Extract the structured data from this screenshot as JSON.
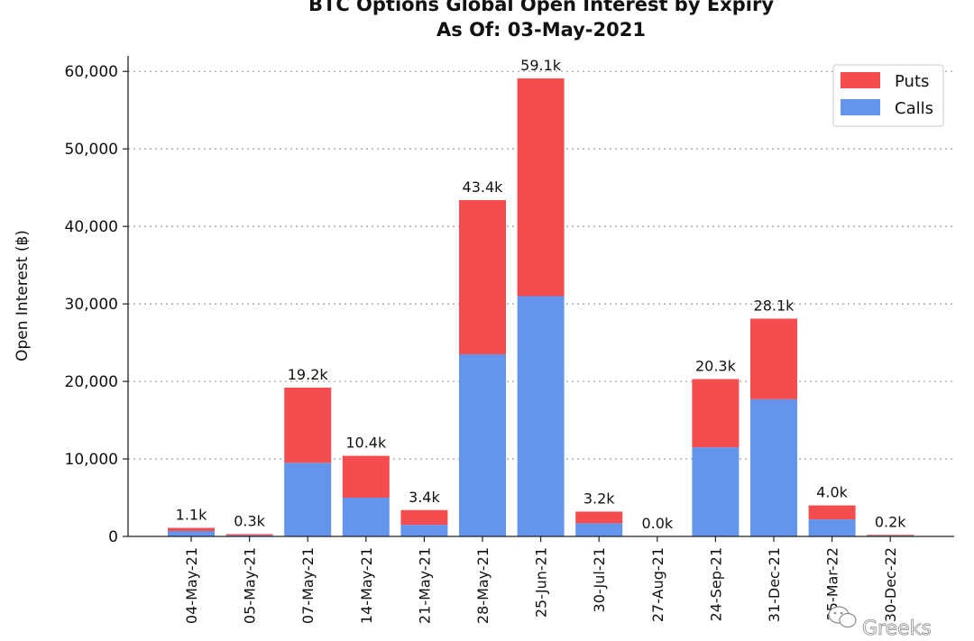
{
  "chart_data": {
    "type": "bar",
    "stacked": true,
    "title": "BTC Options Global Open Interest by Expiry",
    "subtitle": "As Of: 03-May-2021",
    "xlabel": "",
    "ylabel": "Open Interest (฿)",
    "ylim": [
      0,
      62000
    ],
    "yticks": [
      0,
      10000,
      20000,
      30000,
      40000,
      50000,
      60000
    ],
    "ytick_labels": [
      "0",
      "10,000",
      "20,000",
      "30,000",
      "40,000",
      "50,000",
      "60,000"
    ],
    "grid": "horizontal-dotted",
    "legend_position": "top-right",
    "categories": [
      "04-May-21",
      "05-May-21",
      "07-May-21",
      "14-May-21",
      "21-May-21",
      "28-May-21",
      "25-Jun-21",
      "30-Jul-21",
      "27-Aug-21",
      "24-Sep-21",
      "31-Dec-21",
      "25-Mar-22",
      "30-Dec-22"
    ],
    "series": [
      {
        "name": "Calls",
        "color": "#6495ed",
        "values": [
          700,
          150,
          9500,
          5000,
          1500,
          23500,
          31000,
          1700,
          10,
          11500,
          17700,
          2200,
          100
        ]
      },
      {
        "name": "Puts",
        "color": "#f54c4f",
        "values": [
          400,
          150,
          9700,
          5400,
          1900,
          19900,
          28100,
          1500,
          10,
          8800,
          10400,
          1800,
          100
        ]
      }
    ],
    "totals_labels": [
      "1.1k",
      "0.3k",
      "19.2k",
      "10.4k",
      "3.4k",
      "43.4k",
      "59.1k",
      "3.2k",
      "0.0k",
      "20.3k",
      "28.1k",
      "4.0k",
      "0.2k"
    ],
    "legend_order": [
      "Puts",
      "Calls"
    ]
  },
  "watermark": "Greeks",
  "watermark_icon": "wechat-icon"
}
